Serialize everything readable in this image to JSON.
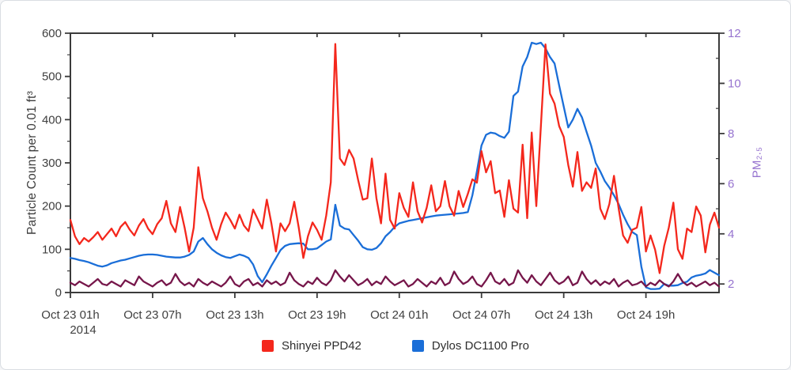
{
  "chart_data": {
    "type": "line",
    "title": "",
    "x_axis": {
      "range": [
        0,
        47.333
      ],
      "unit": "time",
      "ticks": [
        {
          "t": 0,
          "label": "Oct 23 01h",
          "sublabel": "2014"
        },
        {
          "t": 6,
          "label": "Oct 23 07h"
        },
        {
          "t": 12,
          "label": "Oct 23 13h"
        },
        {
          "t": 18,
          "label": "Oct 23 19h"
        },
        {
          "t": 24,
          "label": "Oct 24 01h"
        },
        {
          "t": 30,
          "label": "Oct 24 07h"
        },
        {
          "t": 36,
          "label": "Oct 24 13h"
        },
        {
          "t": 42,
          "label": "Oct 24 19h"
        }
      ]
    },
    "left_axis": {
      "label": "Particle Count per 0.01 ft³",
      "range": [
        0,
        600
      ],
      "major_ticks": [
        0,
        100,
        200,
        300,
        400,
        500,
        600
      ],
      "minor_ticks": [
        50,
        150,
        250,
        350,
        450,
        550
      ],
      "color": "#3f3f3f"
    },
    "right_axis": {
      "label": "PM₂.₅",
      "range": [
        1.66,
        12
      ],
      "major_ticks": [
        2,
        4,
        6,
        8,
        10,
        12
      ],
      "minor_ticks": [
        3,
        5,
        7,
        9,
        11
      ],
      "color": "#9673cf"
    },
    "axis_frame_color": "#3b3b3b",
    "legend": {
      "items": [
        {
          "label": "Shinyei PPD42",
          "color": "#f4271c"
        },
        {
          "label": "Dylos DC1100 Pro",
          "color": "#1a6ed8"
        }
      ]
    },
    "series": [
      {
        "name": "Shinyei PPD42",
        "color": "#f4271c",
        "axis": "left",
        "t0": 0,
        "dt": 0.33333,
        "in_legend": true,
        "values": [
          168,
          130,
          112,
          126,
          118,
          128,
          140,
          122,
          135,
          148,
          130,
          152,
          163,
          145,
          132,
          155,
          170,
          148,
          135,
          158,
          172,
          212,
          160,
          140,
          198,
          150,
          95,
          150,
          290,
          218,
          188,
          150,
          122,
          158,
          185,
          168,
          148,
          180,
          155,
          142,
          192,
          170,
          148,
          215,
          160,
          95,
          160,
          142,
          160,
          210,
          150,
          80,
          130,
          162,
          145,
          122,
          178,
          255,
          575,
          310,
          295,
          330,
          310,
          260,
          215,
          218,
          310,
          218,
          160,
          275,
          168,
          148,
          230,
          196,
          175,
          255,
          188,
          162,
          196,
          248,
          188,
          200,
          258,
          200,
          178,
          235,
          198,
          228,
          262,
          254,
          327,
          278,
          304,
          230,
          236,
          175,
          260,
          194,
          185,
          342,
          172,
          370,
          200,
          385,
          574,
          460,
          437,
          385,
          360,
          295,
          245,
          325,
          235,
          255,
          242,
          287,
          194,
          170,
          205,
          270,
          196,
          132,
          115,
          145,
          150,
          198,
          95,
          132,
          99,
          45,
          108,
          150,
          208,
          100,
          78,
          148,
          140,
          199,
          178,
          93,
          157,
          185,
          150
        ]
      },
      {
        "name": "Dylos DC1100 Pro",
        "color": "#1a6ed8",
        "axis": "left",
        "t0": 0,
        "dt": 0.33333,
        "in_legend": true,
        "values": [
          80,
          78,
          75,
          73,
          70,
          66,
          62,
          60,
          63,
          68,
          71,
          74,
          76,
          79,
          82,
          85,
          87,
          88,
          88,
          87,
          85,
          83,
          82,
          81,
          81,
          83,
          87,
          95,
          118,
          126,
          112,
          100,
          92,
          86,
          82,
          80,
          84,
          88,
          85,
          80,
          65,
          38,
          24,
          42,
          62,
          80,
          98,
          108,
          112,
          113,
          114,
          113,
          100,
          100,
          102,
          110,
          118,
          123,
          203,
          155,
          148,
          146,
          133,
          120,
          105,
          100,
          99,
          103,
          114,
          130,
          140,
          152,
          160,
          163,
          166,
          168,
          170,
          172,
          174,
          176,
          178,
          179,
          180,
          181,
          182,
          183,
          184,
          186,
          225,
          280,
          340,
          365,
          370,
          368,
          362,
          358,
          372,
          455,
          465,
          523,
          545,
          578,
          575,
          578,
          565,
          545,
          530,
          479,
          430,
          382,
          400,
          425,
          405,
          372,
          340,
          300,
          280,
          258,
          243,
          225,
          205,
          180,
          158,
          140,
          133,
          60,
          12,
          8,
          8,
          9,
          20,
          16,
          16,
          17,
          22,
          25,
          35,
          39,
          41,
          44,
          52,
          46,
          40
        ]
      },
      {
        "name": "PM₂.₅",
        "color": "#76164a",
        "axis": "right",
        "t0": 0,
        "dt": 0.33333,
        "in_legend": false,
        "values": [
          2.05,
          1.95,
          2.1,
          2.0,
          1.9,
          2.05,
          2.2,
          2.0,
          1.95,
          2.1,
          2.0,
          1.9,
          2.15,
          2.05,
          1.95,
          2.3,
          2.1,
          2.0,
          1.9,
          2.05,
          2.15,
          1.95,
          2.05,
          2.4,
          2.1,
          1.95,
          2.05,
          1.9,
          2.2,
          2.05,
          1.95,
          2.1,
          2.0,
          1.9,
          2.05,
          2.3,
          2.0,
          1.9,
          2.1,
          2.2,
          1.95,
          2.05,
          1.9,
          2.15,
          2.0,
          2.1,
          1.95,
          2.05,
          2.45,
          2.15,
          2.0,
          1.9,
          2.1,
          2.0,
          2.25,
          2.05,
          1.95,
          2.15,
          2.55,
          2.3,
          2.1,
          2.35,
          2.15,
          1.95,
          2.05,
          2.2,
          1.95,
          2.1,
          2.0,
          2.3,
          2.1,
          1.95,
          2.05,
          2.15,
          1.9,
          2.0,
          2.2,
          2.05,
          1.9,
          2.1,
          2.0,
          2.25,
          1.95,
          2.05,
          2.5,
          2.2,
          2.0,
          2.1,
          2.3,
          2.0,
          1.9,
          2.15,
          2.45,
          2.1,
          2.0,
          2.2,
          1.95,
          2.05,
          2.55,
          2.25,
          2.05,
          2.35,
          2.1,
          1.95,
          2.2,
          2.45,
          2.15,
          2.0,
          2.1,
          2.3,
          1.95,
          2.05,
          2.5,
          2.2,
          2.0,
          2.15,
          1.95,
          2.1,
          2.0,
          2.2,
          1.9,
          2.05,
          2.15,
          1.95,
          2.0,
          2.1,
          1.9,
          2.05,
          1.95,
          2.15,
          2.0,
          1.9,
          2.1,
          2.4,
          2.1,
          1.95,
          2.05,
          1.9,
          2.0,
          2.1,
          1.95,
          2.05,
          1.9
        ]
      }
    ]
  }
}
